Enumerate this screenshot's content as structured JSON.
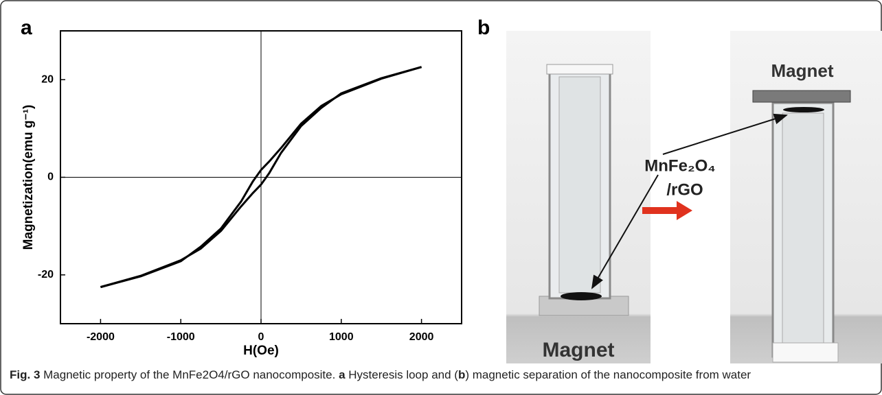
{
  "chart_data": {
    "type": "line",
    "panel_label": "a",
    "xlabel": "H(Oe)",
    "ylabel": "Magnetization(emu g⁻¹)",
    "x": [
      -2000,
      -1500,
      -1000,
      -750,
      -500,
      -250,
      -100,
      0,
      100,
      250,
      500,
      750,
      1000,
      1500,
      2000
    ],
    "series": [
      {
        "color": "#000000",
        "values": [
          -22.5,
          -20.2,
          -17,
          -14.6,
          -11,
          -6,
          -3.2,
          -1.5,
          0.8,
          5,
          10.5,
          14.2,
          17.2,
          20.3,
          22.6
        ]
      },
      {
        "color": "#000000",
        "values": [
          -22.5,
          -20.3,
          -17.2,
          -14.2,
          -10.5,
          -5,
          -0.8,
          1.5,
          3.2,
          6,
          11,
          14.6,
          17,
          20.2,
          22.6
        ]
      }
    ],
    "xlim": [
      -2500,
      2500
    ],
    "xticks": [
      -2000,
      -1000,
      0,
      1000,
      2000
    ],
    "ylim": [
      -30,
      30
    ],
    "yticks": [
      -20,
      0,
      20
    ]
  },
  "photo": {
    "panel_label": "b",
    "magnet_bottom": "Magnet",
    "magnet_top": "Magnet",
    "material_line1": "MnFe₂O₄",
    "material_line2": "/rGO"
  },
  "caption": {
    "label": "Fig. 3",
    "text1": " Magnetic property of the MnFe2O4/rGO nanocomposite. ",
    "a": "a",
    "text2": " Hysteresis loop and (",
    "b": "b",
    "text3": ") magnetic separation of the nanocomposite from water"
  }
}
